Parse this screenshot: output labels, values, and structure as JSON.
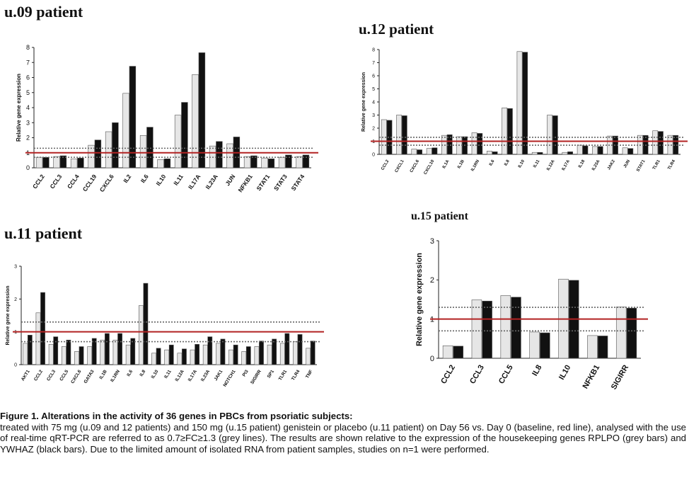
{
  "chart_data": [
    {
      "type": "bar",
      "title": "u.09 patient",
      "ylabel": "Relative gene expression",
      "ylim": [
        0,
        8
      ],
      "yticks": [
        0,
        1,
        2,
        3,
        4,
        5,
        6,
        7,
        8
      ],
      "categories": [
        "CCL2",
        "CCL3",
        "CCL4",
        "CCL19",
        "CXCL6",
        "IL2",
        "IL6",
        "IL10",
        "IL11",
        "IL17A",
        "IL23A",
        "JUN",
        "NFKB1",
        "STAT1",
        "STAT3",
        "STAT4"
      ],
      "series": [
        {
          "color": "#e6e6e6",
          "values": [
            0.7,
            0.75,
            0.6,
            1.5,
            2.4,
            4.95,
            2.15,
            0.55,
            3.5,
            6.2,
            1.45,
            1.6,
            0.75,
            0.65,
            0.7,
            0.75
          ]
        },
        {
          "color": "#111111",
          "values": [
            0.7,
            0.8,
            0.65,
            1.85,
            3.0,
            6.75,
            2.7,
            0.6,
            4.35,
            7.65,
            1.75,
            2.05,
            0.8,
            0.6,
            0.85,
            0.85
          ]
        }
      ],
      "reference_lines": [
        {
          "y": 1.0,
          "color": "#b22222",
          "style": "solid"
        },
        {
          "y": 1.3,
          "color": "#666666",
          "style": "dotted"
        },
        {
          "y": 0.7,
          "color": "#666666",
          "style": "dotted"
        }
      ]
    },
    {
      "type": "bar",
      "title": "u.12 patient",
      "ylabel": "Relative gene expression",
      "ylim": [
        0,
        8
      ],
      "yticks": [
        0,
        1,
        2,
        3,
        4,
        5,
        6,
        7,
        8
      ],
      "categories": [
        "CCL2",
        "CXCL1",
        "CXCL6",
        "CXCL10",
        "IL1A",
        "IL1B",
        "IL1RN",
        "IL6",
        "IL8",
        "IL10",
        "IL11",
        "IL12A",
        "IL17A",
        "IL18",
        "IL23A",
        "JAK2",
        "JUN",
        "STAT1",
        "TLR1",
        "TLR4"
      ],
      "series": [
        {
          "color": "#e6e6e6",
          "values": [
            2.65,
            3.0,
            0.4,
            0.45,
            1.45,
            1.35,
            1.65,
            0.25,
            3.55,
            7.85,
            0.15,
            3.0,
            0.15,
            0.7,
            0.6,
            1.4,
            0.5,
            1.45,
            1.8,
            1.45
          ]
        },
        {
          "color": "#111111",
          "values": [
            2.6,
            2.95,
            0.35,
            0.5,
            1.5,
            1.35,
            1.6,
            0.2,
            3.5,
            7.8,
            0.15,
            2.95,
            0.2,
            0.65,
            0.6,
            1.4,
            0.45,
            1.45,
            1.75,
            1.45
          ]
        }
      ],
      "reference_lines": [
        {
          "y": 1.0,
          "color": "#b22222",
          "style": "solid"
        },
        {
          "y": 1.3,
          "color": "#666666",
          "style": "dotted"
        },
        {
          "y": 0.7,
          "color": "#666666",
          "style": "dotted"
        }
      ]
    },
    {
      "type": "bar",
      "title": "u.11 patient",
      "ylabel": "Relative gene expression",
      "ylim": [
        0,
        3
      ],
      "yticks": [
        0,
        1,
        2,
        3
      ],
      "categories": [
        "AKT1",
        "CCL2",
        "CCL3",
        "CCL5",
        "CXCL6",
        "GATA3",
        "IL1B",
        "IL1RN",
        "IL6",
        "IL8",
        "IL10",
        "IL11",
        "IL12A",
        "IL17A",
        "IL23A",
        "JAK1",
        "NOTCH1",
        "PI3",
        "SIGIRR",
        "SP1",
        "TLR1",
        "TLR4",
        "TNF"
      ],
      "series": [
        {
          "color": "#e6e6e6",
          "values": [
            0.65,
            1.58,
            0.62,
            0.55,
            0.4,
            0.55,
            0.75,
            0.75,
            0.6,
            1.8,
            0.35,
            0.45,
            0.35,
            0.45,
            0.6,
            0.65,
            0.45,
            0.4,
            0.55,
            0.6,
            0.65,
            0.7,
            0.5
          ]
        },
        {
          "color": "#111111",
          "values": [
            0.9,
            2.2,
            0.85,
            0.75,
            0.55,
            0.8,
            0.95,
            0.95,
            0.8,
            2.48,
            0.5,
            0.6,
            0.48,
            0.62,
            0.85,
            0.78,
            0.6,
            0.55,
            0.72,
            0.78,
            0.95,
            0.92,
            0.72
          ]
        }
      ],
      "reference_lines": [
        {
          "y": 1.0,
          "color": "#b22222",
          "style": "solid"
        },
        {
          "y": 1.3,
          "color": "#666666",
          "style": "dotted"
        },
        {
          "y": 0.7,
          "color": "#666666",
          "style": "dotted"
        }
      ]
    },
    {
      "type": "bar",
      "title": "u.15 patient",
      "ylabel": "Relative gene expression",
      "ylim": [
        0,
        3
      ],
      "yticks": [
        0,
        1,
        2,
        3
      ],
      "categories": [
        "CCL2",
        "CCL3",
        "CCL5",
        "IL8",
        "IL10",
        "NFKB1",
        "SIGIRR"
      ],
      "series": [
        {
          "color": "#e6e6e6",
          "values": [
            0.32,
            1.49,
            1.6,
            0.67,
            2.02,
            0.58,
            1.31
          ]
        },
        {
          "color": "#111111",
          "values": [
            0.31,
            1.46,
            1.56,
            0.65,
            1.99,
            0.57,
            1.28
          ]
        }
      ],
      "reference_lines": [
        {
          "y": 1.0,
          "color": "#b22222",
          "style": "solid"
        },
        {
          "y": 1.3,
          "color": "#666666",
          "style": "dotted"
        },
        {
          "y": 0.7,
          "color": "#666666",
          "style": "dotted"
        }
      ]
    }
  ],
  "caption": {
    "title": "Figure 1. Alterations in the activity of 36 genes in PBCs from psoriatic subjects:",
    "body": "treated with 75 mg (u.09 and 12 patients) and 150 mg (u.15 patient) genistein or placebo (u.11 patient) on Day 56 vs. Day 0 (baseline, red line), analysed with the use of real-time qRT-PCR are referred to as 0.7≥FC≥1.3 (grey lines). The results are shown relative to the expression of the housekeeping genes RPLPO (grey bars) and YWHAZ (black bars). Due to the limited amount of isolated RNA from patient samples, studies on n=1 were performed."
  }
}
